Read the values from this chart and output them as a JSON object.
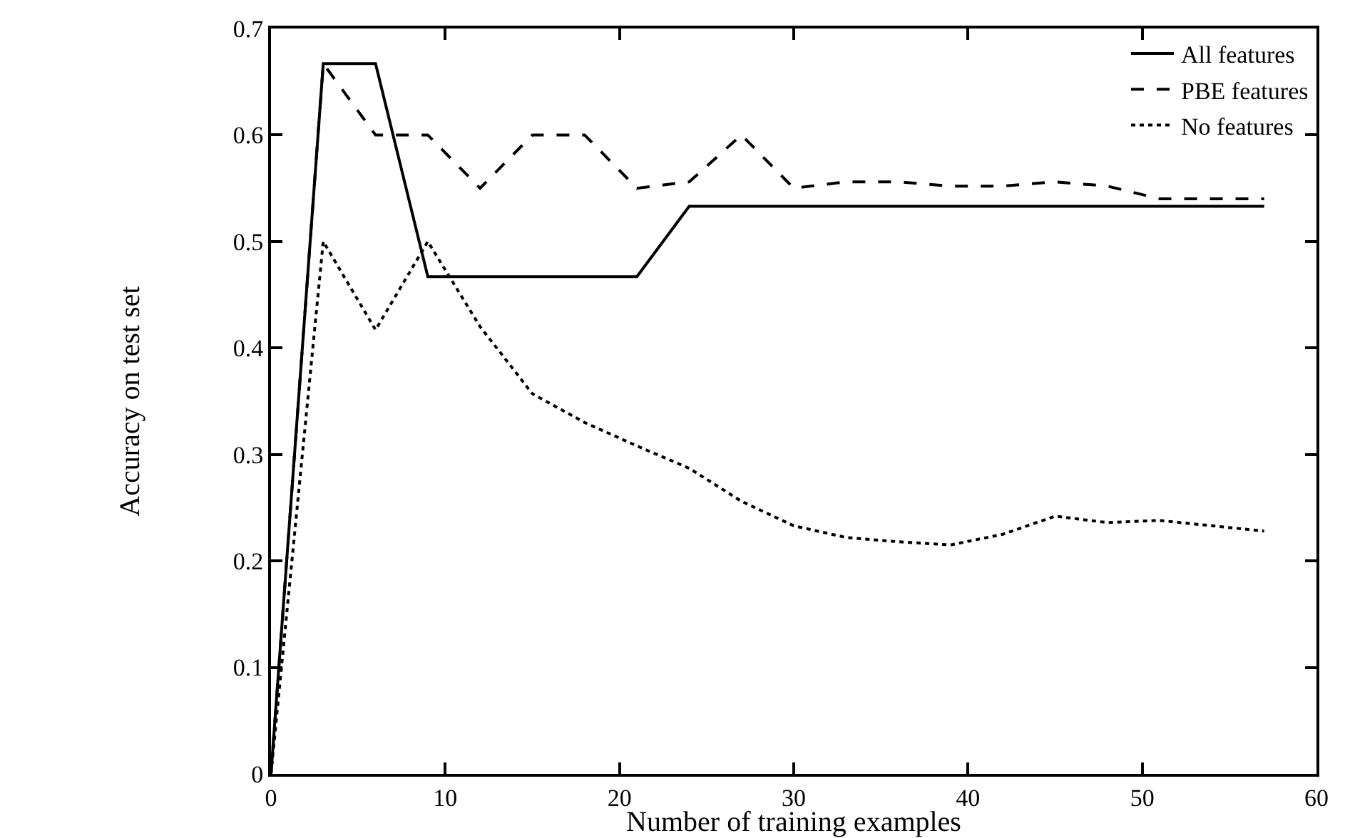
{
  "chart_data": {
    "type": "line",
    "xlabel": "Number of training examples",
    "ylabel": "Accuracy on test set",
    "x": [
      0,
      3,
      6,
      9,
      12,
      15,
      18,
      21,
      24,
      27,
      30,
      33,
      36,
      39,
      42,
      45,
      48,
      51,
      54,
      57
    ],
    "xlim": [
      0,
      60
    ],
    "xticks": [
      0,
      10,
      20,
      30,
      40,
      50,
      60
    ],
    "ylim": [
      0,
      0.7
    ],
    "yticks": [
      0,
      0.1,
      0.2,
      0.3,
      0.4,
      0.5,
      0.6,
      0.7
    ],
    "grid": false,
    "legend": "top right",
    "marker": "none",
    "series": [
      {
        "name": "All features",
        "color": "#000000",
        "line_style": "solid",
        "values": [
          0,
          0.667,
          0.667,
          0.467,
          0.467,
          0.467,
          0.467,
          0.467,
          0.533,
          0.533,
          0.533,
          0.533,
          0.533,
          0.533,
          0.533,
          0.533,
          0.533,
          0.533,
          0.533,
          0.533
        ]
      },
      {
        "name": "PBE features",
        "color": "#000000",
        "line_style": "dashed",
        "values": [
          0,
          0.667,
          0.6,
          0.6,
          0.55,
          0.6,
          0.6,
          0.55,
          0.556,
          0.6,
          0.55,
          0.556,
          0.556,
          0.552,
          0.552,
          0.556,
          0.552,
          0.54,
          0.54,
          0.54
        ]
      },
      {
        "name": "No features",
        "color": "#000000",
        "line_style": "dotted",
        "values": [
          0,
          0.5,
          0.417,
          0.5,
          0.42,
          0.357,
          0.33,
          0.308,
          0.287,
          0.256,
          0.233,
          0.222,
          0.218,
          0.215,
          0.225,
          0.242,
          0.236,
          0.238,
          0.233,
          0.228
        ]
      }
    ]
  }
}
